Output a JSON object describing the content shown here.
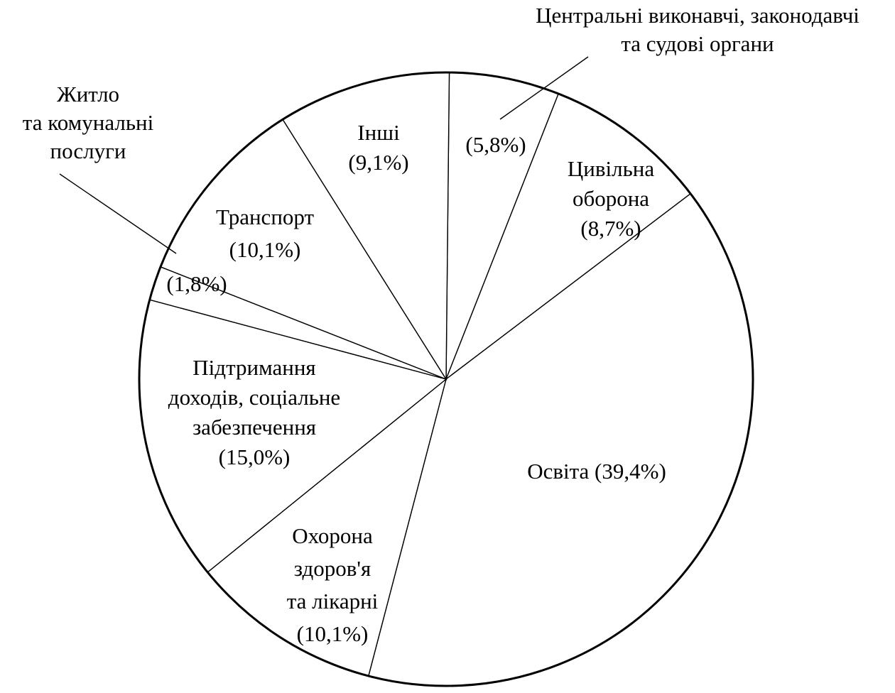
{
  "chart_data": {
    "type": "pie",
    "start_angle_deg": 0.6,
    "direction": "clockwise",
    "slices": [
      {
        "label_lines": [
          "(5,8%)"
        ],
        "label_only_value": true,
        "value": 5.8,
        "value_label": "(5,8%)",
        "external_label_lines": [
          "Центральні виконавчі, законодавчі",
          "та судові органи"
        ],
        "name": "Центральні виконавчі, законодавчі та судові органи"
      },
      {
        "label_lines": [
          "Цивільна",
          "оборона",
          "(8,7%)"
        ],
        "value": 8.7,
        "name": "Цивільна оборона"
      },
      {
        "label_lines": [
          "Освіта (39,4%)"
        ],
        "value": 39.4,
        "name": "Освіта"
      },
      {
        "label_lines": [
          "Охорона",
          "здоров'я",
          "та лікарні",
          "(10,1%)"
        ],
        "value": 10.1,
        "name": "Охорона здоров'я та лікарні"
      },
      {
        "label_lines": [
          "Підтримання",
          "доходів, соціальне",
          "забезпечення",
          "(15,0%)"
        ],
        "value": 15.0,
        "name": "Підтримання доходів, соціальне забезпечення"
      },
      {
        "label_lines": [
          "(1,8%)"
        ],
        "label_only_value": true,
        "value": 1.8,
        "value_label": "(1,8%)",
        "external_label_lines": [
          "Житло",
          "та комунальні",
          "послуги"
        ],
        "name": "Житло та комунальні послуги"
      },
      {
        "label_lines": [
          "Транспорт",
          "(10,1%)"
        ],
        "value": 10.1,
        "name": "Транспорт"
      },
      {
        "label_lines": [
          "Інші",
          "(9,1%)"
        ],
        "value": 9.1,
        "name": "Інші"
      }
    ]
  }
}
